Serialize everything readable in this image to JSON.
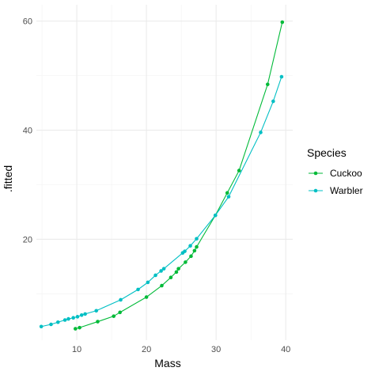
{
  "chart_data": {
    "type": "line",
    "title": "",
    "xlabel": "Mass",
    "ylabel": ".fitted",
    "xlim": [
      4.2,
      41
    ],
    "ylim": [
      1.5,
      63
    ],
    "x_ticks": [
      10,
      20,
      30,
      40
    ],
    "x_tick_labels": [
      "10",
      "20",
      "30",
      "40"
    ],
    "y_ticks": [
      20,
      40,
      60
    ],
    "y_tick_labels": [
      "20",
      "40",
      "60"
    ],
    "grid": true,
    "legend": {
      "title": "Species",
      "position": "right",
      "entries": [
        "Cuckoo",
        "Warbler"
      ]
    },
    "series": [
      {
        "name": "Cuckoo",
        "color": "#00BA38",
        "marker": "circle",
        "points": [
          [
            9.8,
            3.6
          ],
          [
            10.4,
            3.8
          ],
          [
            13.0,
            4.9
          ],
          [
            15.3,
            5.9
          ],
          [
            16.2,
            6.6
          ],
          [
            20.0,
            9.4
          ],
          [
            22.2,
            11.5
          ],
          [
            23.5,
            13.0
          ],
          [
            24.3,
            14.0
          ],
          [
            24.6,
            14.6
          ],
          [
            25.6,
            15.8
          ],
          [
            26.4,
            16.9
          ],
          [
            26.9,
            17.9
          ],
          [
            27.2,
            18.6
          ],
          [
            29.9,
            24.4
          ],
          [
            31.6,
            28.5
          ],
          [
            33.3,
            32.6
          ],
          [
            37.4,
            48.4
          ],
          [
            39.5,
            59.8
          ]
        ]
      },
      {
        "name": "Warbler",
        "color": "#00BFC4",
        "marker": "circle",
        "points": [
          [
            4.9,
            4.0
          ],
          [
            6.3,
            4.4
          ],
          [
            7.3,
            4.8
          ],
          [
            8.3,
            5.2
          ],
          [
            8.8,
            5.4
          ],
          [
            9.5,
            5.6
          ],
          [
            10.1,
            5.8
          ],
          [
            10.7,
            6.1
          ],
          [
            11.2,
            6.3
          ],
          [
            12.8,
            6.9
          ],
          [
            16.3,
            8.9
          ],
          [
            18.8,
            10.8
          ],
          [
            20.2,
            12.1
          ],
          [
            21.3,
            13.4
          ],
          [
            22.1,
            14.2
          ],
          [
            22.5,
            14.6
          ],
          [
            25.2,
            17.5
          ],
          [
            25.5,
            17.8
          ],
          [
            26.3,
            18.8
          ],
          [
            27.2,
            20.1
          ],
          [
            29.9,
            24.4
          ],
          [
            31.8,
            27.8
          ],
          [
            36.4,
            39.6
          ],
          [
            38.2,
            45.3
          ],
          [
            39.4,
            49.8
          ]
        ]
      }
    ]
  }
}
